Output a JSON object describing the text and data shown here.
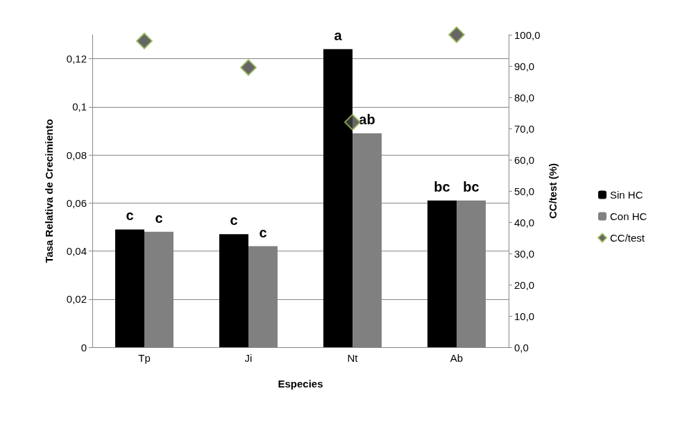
{
  "chart_data": {
    "type": "bar",
    "xlabel": "Especies",
    "ylabel": "Tasa Relativa de Crecimiento",
    "y2label": "CC/test (%)",
    "categories": [
      "Tp",
      "Ji",
      "Nt",
      "Ab"
    ],
    "series": [
      {
        "name": "Sin HC",
        "color": "#000000",
        "values": [
          0.049,
          0.047,
          0.124,
          0.061
        ],
        "value_labels": [
          "c",
          "c",
          "a",
          "bc"
        ]
      },
      {
        "name": "Con HC",
        "color": "#808080",
        "values": [
          0.048,
          0.042,
          0.089,
          0.061
        ],
        "value_labels": [
          "c",
          "c",
          "ab",
          "bc"
        ]
      },
      {
        "name": "CC/test",
        "type": "scatter",
        "axis": "y2",
        "color": "#404040",
        "marker": "diamond",
        "values": [
          98,
          89.5,
          72,
          100
        ]
      }
    ],
    "ylim": [
      0,
      0.13
    ],
    "yticks": [
      0,
      {
        "value": 0.02,
        "label": "0,02"
      },
      {
        "value": 0.04,
        "label": "0,04"
      },
      {
        "value": 0.06,
        "label": "0,06"
      },
      {
        "value": 0.08,
        "label": "0,08"
      },
      {
        "value": 0.1,
        "label": "0,1"
      },
      {
        "value": 0.12,
        "label": "0,12"
      }
    ],
    "y2lim": [
      0,
      100
    ],
    "y2ticks": [
      {
        "value": 0,
        "label": "0,0"
      },
      {
        "value": 10,
        "label": "10,0"
      },
      {
        "value": 20,
        "label": "20,0"
      },
      {
        "value": 30,
        "label": "30,0"
      },
      {
        "value": 40,
        "label": "40,0"
      },
      {
        "value": 50,
        "label": "50,0"
      },
      {
        "value": 60,
        "label": "60,0"
      },
      {
        "value": 70,
        "label": "70,0"
      },
      {
        "value": 80,
        "label": "80,0"
      },
      {
        "value": 90,
        "label": "90,0"
      },
      {
        "value": 100,
        "label": "100,0"
      }
    ],
    "grid": "y",
    "legend": "right"
  }
}
